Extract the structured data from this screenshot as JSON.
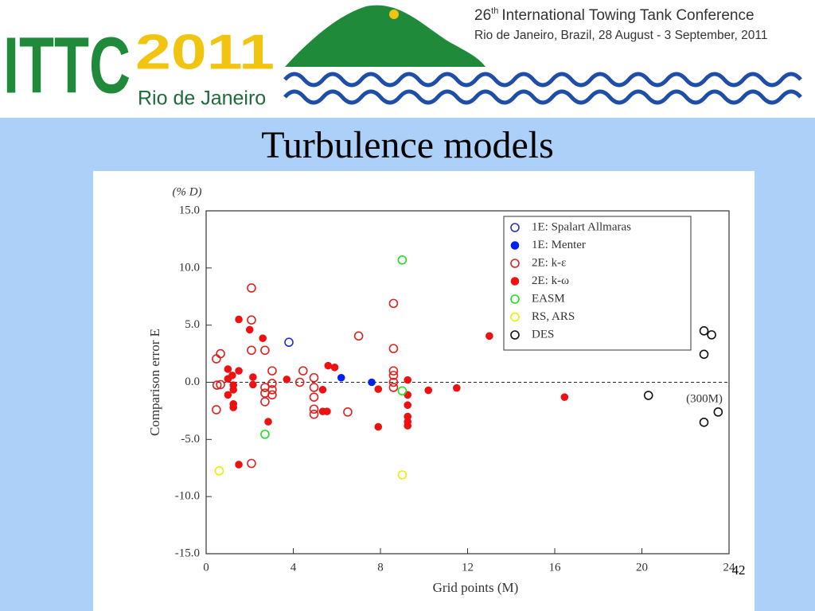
{
  "banner": {
    "logo_text": "ITTC",
    "logo_year": "2011",
    "logo_city": "Rio de Janeiro",
    "conference_number": "26",
    "conference_suffix": "th",
    "conference_name": "International Towing Tank Conference",
    "conference_details": "Rio de Janeiro, Brazil, 28 August - 3 September, 2011"
  },
  "slide_title": "Turbulence models",
  "page_number": "42",
  "chart_data": {
    "type": "scatter",
    "y_unit_label": "(% D)",
    "ylabel": "Comparison error E",
    "xlabel": "Grid points (M)",
    "annotation": "(300M)",
    "xlim": [
      0,
      24
    ],
    "xticks": [
      0,
      4,
      8,
      12,
      16,
      20,
      24
    ],
    "ylim": [
      -15,
      15
    ],
    "yticks": [
      {
        "value": -15,
        "label": "-15.0"
      },
      {
        "value": -10,
        "label": "-10.0"
      },
      {
        "value": -5,
        "label": "-5.0"
      },
      {
        "value": 0,
        "label": "0.0"
      },
      {
        "value": 5,
        "label": "5.0"
      },
      {
        "value": 10,
        "label": "10.0"
      },
      {
        "value": 15,
        "label": "15.0"
      }
    ],
    "legend": "upper right",
    "series": [
      {
        "name": "1E: Spalart Allmaras",
        "color": "#2233cc",
        "marker": "open",
        "x": [
          3.8
        ],
        "values": [
          3.5
        ]
      },
      {
        "name": "1E: Menter",
        "color": "#0022ee",
        "marker": "filled",
        "x": [
          6.2,
          7.6
        ],
        "values": [
          0.4,
          0.0
        ]
      },
      {
        "name": "2E: k-ε",
        "color": "#dd2222",
        "marker": "open",
        "x": [
          0.47,
          0.66,
          0.5,
          0.66,
          0.47,
          2.08,
          2.08,
          2.08,
          2.08,
          2.7,
          2.7,
          2.7,
          2.7,
          3.03,
          3.03,
          3.03,
          3.03,
          4.3,
          4.45,
          4.95,
          4.95,
          4.95,
          4.95,
          4.95,
          6.5,
          7.0,
          8.6,
          8.6,
          8.6,
          8.6,
          8.6,
          8.6
        ],
        "values": [
          2.05,
          2.5,
          -0.25,
          -0.2,
          -2.4,
          8.25,
          5.45,
          2.8,
          -7.1,
          2.8,
          -0.45,
          -0.95,
          -1.7,
          1.0,
          -0.1,
          -0.65,
          -1.1,
          0.0,
          1.0,
          0.4,
          -0.45,
          -1.3,
          -2.35,
          -2.8,
          -2.6,
          4.05,
          6.9,
          2.95,
          1.0,
          0.6,
          0.0,
          -0.45
        ]
      },
      {
        "name": "2E: k-ω",
        "color": "#ee1111",
        "marker": "filled",
        "x": [
          1.0,
          1.0,
          1.0,
          1.2,
          1.25,
          1.25,
          1.25,
          1.25,
          1.5,
          1.5,
          1.5,
          2.0,
          2.15,
          2.15,
          2.6,
          2.85,
          3.7,
          5.35,
          5.35,
          5.55,
          5.6,
          5.9,
          7.9,
          7.9,
          9.25,
          9.25,
          9.25,
          9.25,
          9.25,
          9.25,
          10.2,
          11.5,
          13.0,
          16.45
        ],
        "values": [
          1.15,
          0.3,
          -1.1,
          0.6,
          -0.25,
          -0.65,
          -1.9,
          -2.2,
          1.0,
          5.5,
          -7.2,
          4.6,
          0.45,
          -0.2,
          3.85,
          -3.45,
          0.25,
          -0.65,
          -2.55,
          -2.55,
          1.45,
          1.3,
          -3.9,
          -0.6,
          0.2,
          -1.1,
          -2.0,
          -3.0,
          -3.45,
          -3.8,
          -0.7,
          -0.5,
          4.05,
          -1.3
        ]
      },
      {
        "name": "EASM",
        "color": "#22dd22",
        "marker": "open",
        "x": [
          9.0,
          9.0,
          2.7
        ],
        "values": [
          10.7,
          -0.75,
          -4.55
        ]
      },
      {
        "name": "RS, ARS",
        "color": "#eeee00",
        "marker": "open",
        "x": [
          0.6,
          9.0
        ],
        "values": [
          -7.75,
          -8.1
        ]
      },
      {
        "name": "DES",
        "color": "#111111",
        "marker": "open",
        "x": [
          22.85,
          23.2,
          22.85,
          20.3,
          22.85,
          23.5
        ],
        "values": [
          4.5,
          4.15,
          2.45,
          -1.15,
          -3.5,
          -2.6
        ]
      }
    ]
  }
}
